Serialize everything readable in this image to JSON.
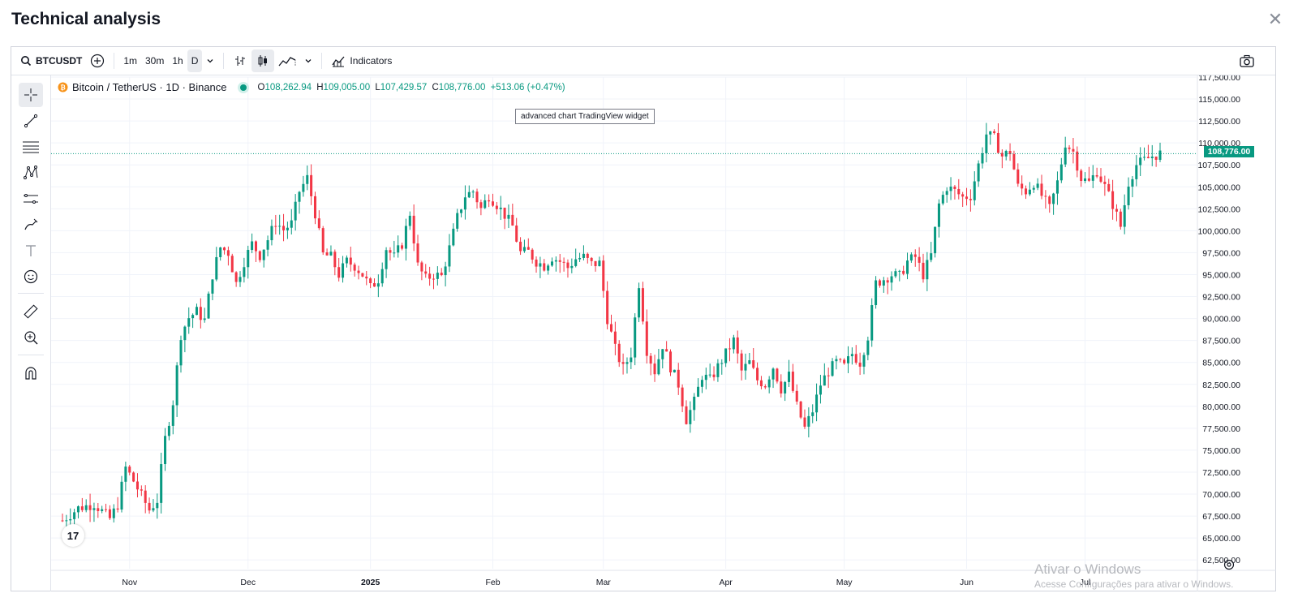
{
  "modal": {
    "title": "Technical analysis",
    "close_glyph": "✕"
  },
  "toolbar": {
    "symbol": "BTCUSDT",
    "intervals": [
      "1m",
      "30m",
      "1h",
      "D"
    ],
    "active_interval": "D",
    "indicators_label": "Indicators"
  },
  "legend": {
    "title": "Bitcoin / TetherUS · 1D · Binance",
    "open_label": "O",
    "open": "108,262.94",
    "high_label": "H",
    "high": "109,005.00",
    "low_label": "L",
    "low": "107,429.57",
    "close_label": "C",
    "close": "108,776.00",
    "change": "+513.06 (+0.47%)"
  },
  "tooltip": "advanced chart TradingView widget",
  "last_price_label": "108,776.00",
  "watermark": {
    "title": "Ativar o Windows",
    "subtitle": "Acesse Configurações para ativar o Windows."
  },
  "tv_logo": "17",
  "colors": {
    "up": "#089981",
    "down": "#f23645",
    "grid": "#f0f3fa",
    "axis_text": "#131722"
  },
  "chart_data": {
    "type": "candlestick",
    "ylim": [
      61500,
      117500
    ],
    "y_ticks": [
      62500,
      65000,
      67500,
      70000,
      72500,
      75000,
      77500,
      80000,
      82500,
      85000,
      87500,
      90000,
      92500,
      95000,
      97500,
      100000,
      102500,
      105000,
      107500,
      110000,
      112500,
      115000,
      117500
    ],
    "y_tick_labels": [
      "62,500.00",
      "65,000.00",
      "67,500.00",
      "70,000.00",
      "72,500.00",
      "75,000.00",
      "77,500.00",
      "80,000.00",
      "82,500.00",
      "85,000.00",
      "87,500.00",
      "90,000.00",
      "92,500.00",
      "95,000.00",
      "97,500.00",
      "100,000.00",
      "102,500.00",
      "105,000.00",
      "107,500.00",
      "110,000.00",
      "112,500.00",
      "115,000.00",
      "117,500.00"
    ],
    "x_labels": [
      {
        "label": "Nov",
        "day": 21
      },
      {
        "label": "Dec",
        "day": 51
      },
      {
        "label": "2025",
        "day": 82,
        "bold": true
      },
      {
        "label": "Feb",
        "day": 113
      },
      {
        "label": "Mar",
        "day": 141
      },
      {
        "label": "Apr",
        "day": 172
      },
      {
        "label": "May",
        "day": 202
      },
      {
        "label": "Jun",
        "day": 233
      },
      {
        "label": "Jul",
        "day": 263
      }
    ],
    "day_range": [
      4,
      282
    ],
    "close_series": [
      [
        4,
        67000
      ],
      [
        8,
        68400
      ],
      [
        12,
        68900
      ],
      [
        16,
        67200
      ],
      [
        18,
        68800
      ],
      [
        20,
        73000
      ],
      [
        22,
        71500
      ],
      [
        24,
        69800
      ],
      [
        26,
        68200
      ],
      [
        28,
        69300
      ],
      [
        30,
        76300
      ],
      [
        32,
        80500
      ],
      [
        34,
        88200
      ],
      [
        36,
        90100
      ],
      [
        38,
        90800
      ],
      [
        40,
        89800
      ],
      [
        42,
        95000
      ],
      [
        44,
        98100
      ],
      [
        46,
        97500
      ],
      [
        48,
        94000
      ],
      [
        50,
        96500
      ],
      [
        52,
        98500
      ],
      [
        54,
        97200
      ],
      [
        56,
        99000
      ],
      [
        58,
        101000
      ],
      [
        60,
        100100
      ],
      [
        62,
        100800
      ],
      [
        64,
        104500
      ],
      [
        66,
        106000
      ],
      [
        68,
        102000
      ],
      [
        70,
        97300
      ],
      [
        72,
        97000
      ],
      [
        74,
        95000
      ],
      [
        76,
        96500
      ],
      [
        78,
        96000
      ],
      [
        80,
        95000
      ],
      [
        82,
        93500
      ],
      [
        84,
        94500
      ],
      [
        86,
        98000
      ],
      [
        88,
        97000
      ],
      [
        90,
        98500
      ],
      [
        92,
        102000
      ],
      [
        94,
        96000
      ],
      [
        96,
        94500
      ],
      [
        98,
        95000
      ],
      [
        100,
        94800
      ],
      [
        102,
        98000
      ],
      [
        104,
        101500
      ],
      [
        106,
        104000
      ],
      [
        108,
        104500
      ],
      [
        110,
        102500
      ],
      [
        112,
        104000
      ],
      [
        114,
        103000
      ],
      [
        116,
        101800
      ],
      [
        118,
        100500
      ],
      [
        120,
        97500
      ],
      [
        122,
        97600
      ],
      [
        124,
        96500
      ],
      [
        126,
        96000
      ],
      [
        128,
        97000
      ],
      [
        130,
        96500
      ],
      [
        132,
        95800
      ],
      [
        134,
        96800
      ],
      [
        136,
        97000
      ],
      [
        138,
        96200
      ],
      [
        140,
        96300
      ],
      [
        142,
        90000
      ],
      [
        144,
        86500
      ],
      [
        146,
        84300
      ],
      [
        148,
        86000
      ],
      [
        150,
        94000
      ],
      [
        152,
        86400
      ],
      [
        154,
        84000
      ],
      [
        156,
        87000
      ],
      [
        158,
        84500
      ],
      [
        160,
        82500
      ],
      [
        162,
        78500
      ],
      [
        164,
        80500
      ],
      [
        166,
        83500
      ],
      [
        168,
        83000
      ],
      [
        170,
        84500
      ],
      [
        172,
        86000
      ],
      [
        174,
        87500
      ],
      [
        176,
        84000
      ],
      [
        178,
        85000
      ],
      [
        180,
        83000
      ],
      [
        182,
        82500
      ],
      [
        184,
        84500
      ],
      [
        186,
        82000
      ],
      [
        188,
        83500
      ],
      [
        190,
        80000
      ],
      [
        192,
        77500
      ],
      [
        194,
        79500
      ],
      [
        196,
        82500
      ],
      [
        198,
        84000
      ],
      [
        200,
        85000
      ],
      [
        202,
        84500
      ],
      [
        204,
        86000
      ],
      [
        206,
        85000
      ],
      [
        208,
        88000
      ],
      [
        210,
        94000
      ],
      [
        212,
        94500
      ],
      [
        214,
        95000
      ],
      [
        216,
        94800
      ],
      [
        218,
        96500
      ],
      [
        220,
        97000
      ],
      [
        222,
        95000
      ],
      [
        224,
        97200
      ],
      [
        226,
        103000
      ],
      [
        228,
        105000
      ],
      [
        230,
        104500
      ],
      [
        232,
        103800
      ],
      [
        234,
        104000
      ],
      [
        236,
        107500
      ],
      [
        238,
        111000
      ],
      [
        240,
        110500
      ],
      [
        242,
        108500
      ],
      [
        244,
        109000
      ],
      [
        246,
        105000
      ],
      [
        248,
        104500
      ],
      [
        250,
        105500
      ],
      [
        252,
        104000
      ],
      [
        254,
        102500
      ],
      [
        256,
        105500
      ],
      [
        258,
        110000
      ],
      [
        260,
        109000
      ],
      [
        262,
        106000
      ],
      [
        264,
        105500
      ],
      [
        266,
        106800
      ],
      [
        268,
        105000
      ],
      [
        270,
        103000
      ],
      [
        272,
        100500
      ],
      [
        274,
        105500
      ],
      [
        276,
        107500
      ],
      [
        278,
        108000
      ],
      [
        280,
        108500
      ],
      [
        282,
        108776
      ]
    ],
    "last_price": 108776
  }
}
